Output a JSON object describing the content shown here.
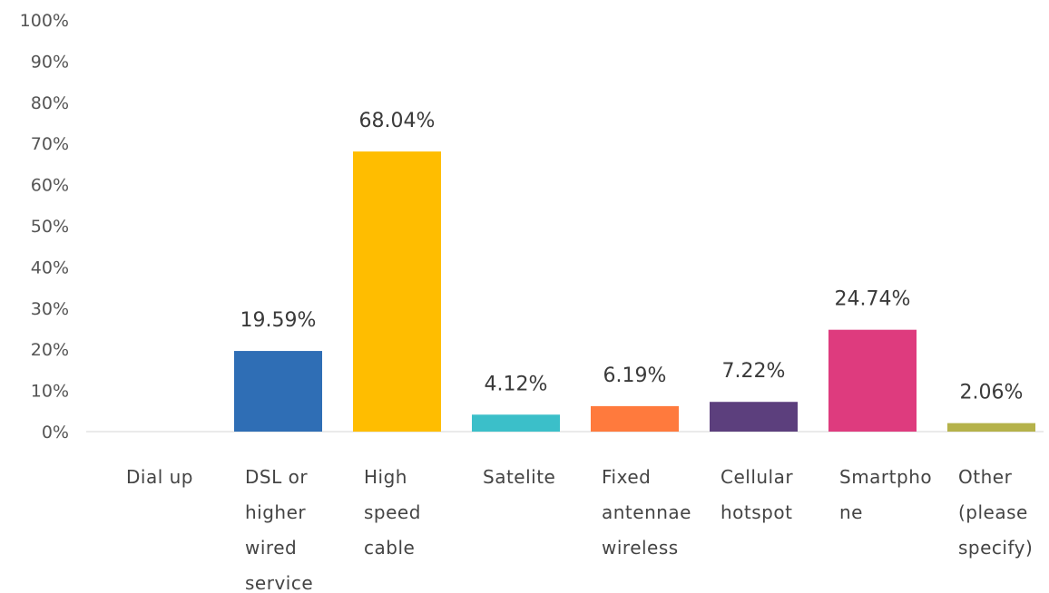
{
  "chart_data": {
    "type": "bar",
    "title": "",
    "xlabel": "",
    "ylabel": "",
    "ylim": [
      0,
      100
    ],
    "ytick_values": [
      0,
      10,
      20,
      30,
      40,
      50,
      60,
      70,
      80,
      90,
      100
    ],
    "ytick_labels": [
      "0%",
      "10%",
      "20%",
      "30%",
      "40%",
      "50%",
      "60%",
      "70%",
      "80%",
      "90%",
      "100%"
    ],
    "grid": false,
    "categories": [
      [
        "Dial up"
      ],
      [
        "DSL or",
        "higher",
        "wired",
        "service"
      ],
      [
        "High",
        "speed",
        "cable"
      ],
      [
        "Satelite"
      ],
      [
        "Fixed",
        "antennae",
        "wireless"
      ],
      [
        "Cellular",
        "hotspot"
      ],
      [
        "Smartpho",
        "ne"
      ],
      [
        "Other",
        "(please",
        "specify)"
      ]
    ],
    "values": [
      0,
      19.59,
      68.04,
      4.12,
      6.19,
      7.22,
      24.74,
      2.06
    ],
    "value_labels": [
      "",
      "19.59%",
      "68.04%",
      "4.12%",
      "6.19%",
      "7.22%",
      "24.74%",
      "2.06%"
    ],
    "colors": [
      "#f7c35c",
      "#2f6eb5",
      "#ffbd00",
      "#3bbfc9",
      "#ff7a3d",
      "#5c3f7d",
      "#de3b7e",
      "#b5b24a"
    ]
  }
}
